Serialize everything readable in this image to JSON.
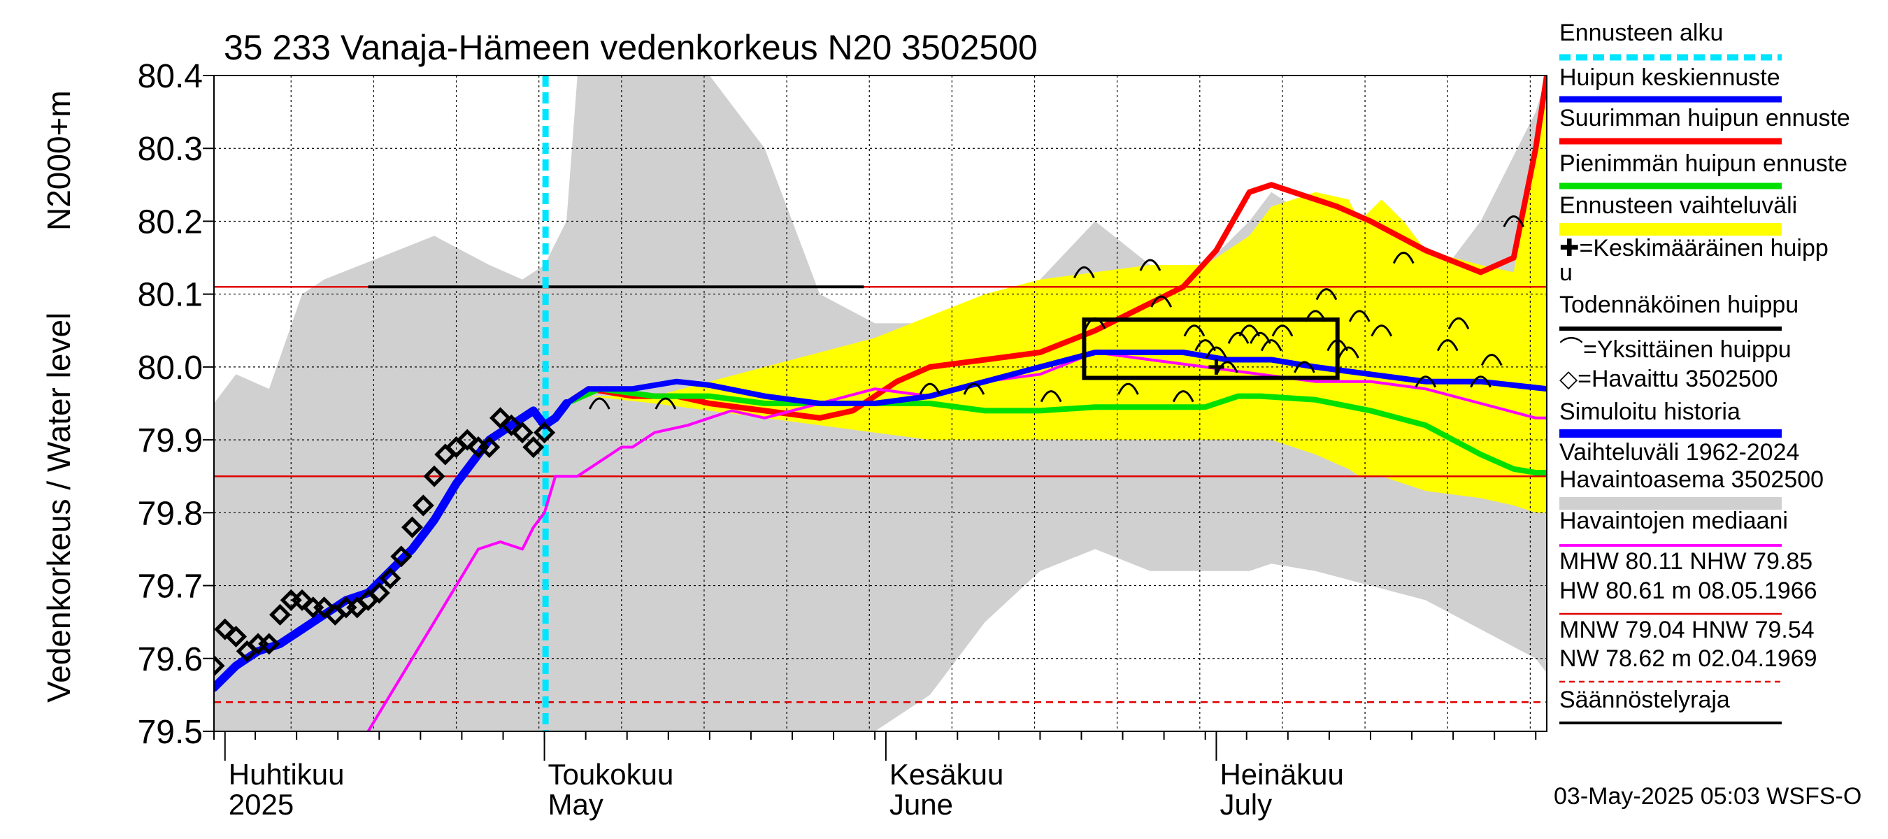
{
  "chart_data": {
    "type": "line",
    "title": "35 233 Vanaja-Hämeen vedenkorkeus N20 3502500",
    "ylabel": "Vedenkorkeus / Water level",
    "ylabel_unit": "N2000+m",
    "ylim": [
      79.5,
      80.4
    ],
    "y_ticks": [
      "80.4",
      "80.3",
      "80.2",
      "80.1",
      "80.0",
      "79.9",
      "79.8",
      "79.7",
      "79.6",
      "79.5"
    ],
    "x_range_days": [
      0,
      121
    ],
    "x_month_labels": [
      {
        "day": 1,
        "fi": "Huhtikuu",
        "en": "2025"
      },
      {
        "day": 30,
        "fi": "Toukokuu",
        "en": "May"
      },
      {
        "day": 61,
        "fi": "Kesäkuu",
        "en": "June"
      },
      {
        "day": 91,
        "fi": "Heinäkuu",
        "en": "July"
      }
    ],
    "forecast_start_day": 30.1,
    "reference_lines": [
      {
        "name": "MHW",
        "value": 80.11
      },
      {
        "name": "NHW",
        "value": 79.85
      },
      {
        "name": "Säännöstelyraja",
        "value": 79.54
      }
    ],
    "historical_range": {
      "x": [
        0,
        2,
        5,
        8,
        10,
        15,
        20,
        25,
        28,
        30,
        32,
        33,
        35,
        40,
        45,
        50,
        55,
        60,
        65,
        70,
        75,
        80,
        85,
        90,
        94,
        96,
        100,
        105,
        110,
        115,
        120,
        121
      ],
      "upper": [
        79.95,
        79.99,
        79.97,
        80.1,
        80.12,
        80.15,
        80.18,
        80.14,
        80.12,
        80.14,
        80.2,
        80.4,
        80.4,
        80.4,
        80.4,
        80.3,
        80.1,
        80.06,
        80.06,
        80.08,
        80.12,
        80.2,
        80.14,
        80.14,
        80.2,
        80.24,
        80.2,
        80.12,
        80.1,
        80.2,
        80.35,
        80.4
      ],
      "lower": [
        79.5,
        79.5,
        79.5,
        79.5,
        79.5,
        79.5,
        79.5,
        79.5,
        79.5,
        79.5,
        79.5,
        79.5,
        79.5,
        79.5,
        79.5,
        79.5,
        79.5,
        79.5,
        79.55,
        79.65,
        79.72,
        79.75,
        79.72,
        79.72,
        79.72,
        79.73,
        79.72,
        79.7,
        79.68,
        79.64,
        79.6,
        79.58
      ]
    },
    "forecast_band": {
      "x": [
        34,
        40,
        45,
        50,
        55,
        60,
        65,
        70,
        75,
        80,
        85,
        90,
        94,
        96,
        100,
        103,
        104,
        106,
        108,
        110,
        115,
        118,
        120,
        121
      ],
      "upper": [
        79.96,
        79.96,
        79.98,
        80.0,
        80.02,
        80.04,
        80.07,
        80.1,
        80.12,
        80.13,
        80.14,
        80.14,
        80.18,
        80.22,
        80.24,
        80.23,
        80.2,
        80.23,
        80.2,
        80.16,
        80.14,
        80.13,
        80.3,
        80.4
      ],
      "lower": [
        79.96,
        79.95,
        79.94,
        79.93,
        79.92,
        79.91,
        79.9,
        79.9,
        79.9,
        79.9,
        79.9,
        79.9,
        79.9,
        79.9,
        79.88,
        79.86,
        79.85,
        79.85,
        79.84,
        79.83,
        79.82,
        79.81,
        79.8,
        79.8
      ]
    },
    "series": [
      {
        "name": "Suurimman huipun ennuste",
        "color": "#ff0000",
        "x": [
          32,
          34,
          38,
          42,
          45,
          50,
          55,
          58,
          62,
          65,
          70,
          75,
          80,
          84,
          88,
          91,
          94,
          96,
          98,
          100,
          102,
          105,
          110,
          115,
          118,
          120,
          121
        ],
        "y": [
          79.95,
          79.97,
          79.96,
          79.96,
          79.95,
          79.94,
          79.93,
          79.94,
          79.98,
          80.0,
          80.01,
          80.02,
          80.05,
          80.08,
          80.11,
          80.16,
          80.24,
          80.25,
          80.24,
          80.23,
          80.22,
          80.2,
          80.16,
          80.13,
          80.15,
          80.3,
          80.4
        ]
      },
      {
        "name": "Pienimmän huipun ennuste",
        "color": "#00e000",
        "x": [
          32,
          35,
          40,
          45,
          50,
          55,
          60,
          65,
          70,
          75,
          80,
          85,
          90,
          93,
          95,
          100,
          105,
          110,
          115,
          118,
          120,
          121
        ],
        "y": [
          79.95,
          79.97,
          79.96,
          79.96,
          79.95,
          79.95,
          79.95,
          79.95,
          79.94,
          79.94,
          79.945,
          79.945,
          79.945,
          79.96,
          79.96,
          79.955,
          79.94,
          79.92,
          79.88,
          79.86,
          79.855,
          79.855
        ]
      },
      {
        "name": "Havaintojen mediaani",
        "color": "#ff00ff",
        "x": [
          14,
          16,
          18,
          20,
          22,
          24,
          26,
          28,
          29,
          30,
          31,
          32,
          33,
          34,
          35,
          36,
          37,
          38,
          40,
          43,
          45,
          47,
          50,
          55,
          60,
          65,
          70,
          75,
          80,
          85,
          90,
          95,
          100,
          105,
          110,
          115,
          120,
          121
        ],
        "y": [
          79.5,
          79.55,
          79.6,
          79.65,
          79.7,
          79.75,
          79.76,
          79.75,
          79.78,
          79.8,
          79.85,
          79.85,
          79.85,
          79.86,
          79.87,
          79.88,
          79.89,
          79.89,
          79.91,
          79.92,
          79.93,
          79.94,
          79.93,
          79.95,
          79.97,
          79.96,
          79.98,
          79.99,
          80.02,
          80.01,
          80.0,
          79.99,
          79.98,
          79.98,
          79.97,
          79.95,
          79.93,
          79.93
        ]
      },
      {
        "name": "Huipun keskiennuste",
        "color": "#0000ff",
        "x": [
          32,
          34,
          38,
          42,
          45,
          50,
          55,
          60,
          65,
          70,
          75,
          80,
          85,
          88,
          92,
          96,
          100,
          105,
          110,
          115,
          121
        ],
        "y": [
          79.95,
          79.97,
          79.97,
          79.98,
          79.975,
          79.96,
          79.95,
          79.95,
          79.96,
          79.98,
          80.0,
          80.02,
          80.02,
          80.02,
          80.01,
          80.01,
          80.0,
          79.99,
          79.98,
          79.98,
          79.97
        ]
      },
      {
        "name": "Simuloitu historia",
        "color": "#0000ff",
        "x": [
          0,
          2,
          4,
          6,
          8,
          10,
          12,
          14,
          16,
          18,
          20,
          22,
          24,
          25,
          26,
          27,
          28,
          29,
          30,
          31,
          32
        ],
        "y": [
          79.56,
          79.59,
          79.61,
          79.62,
          79.64,
          79.66,
          79.68,
          79.69,
          79.72,
          79.75,
          79.79,
          79.84,
          79.88,
          79.9,
          79.91,
          79.92,
          79.93,
          79.94,
          79.92,
          79.93,
          79.95
        ]
      }
    ],
    "observed": {
      "name": "Havaittu 3502500",
      "x": [
        0,
        1,
        2,
        3,
        4,
        5,
        6,
        7,
        8,
        9,
        10,
        11,
        12,
        13,
        14,
        15,
        16,
        17,
        18,
        19,
        20,
        21,
        22,
        23,
        24,
        25,
        26,
        27,
        28,
        29,
        30
      ],
      "y": [
        79.59,
        79.64,
        79.63,
        79.61,
        79.62,
        79.62,
        79.66,
        79.68,
        79.68,
        79.67,
        79.67,
        79.66,
        79.67,
        79.67,
        79.68,
        79.69,
        79.71,
        79.74,
        79.78,
        79.81,
        79.85,
        79.88,
        79.89,
        79.9,
        79.89,
        79.89,
        79.93,
        79.92,
        79.91,
        79.89,
        79.91
      ]
    },
    "single_peaks": {
      "name": "Yksittäinen huippu",
      "x": [
        35,
        41,
        65,
        69,
        76,
        79,
        80,
        83,
        85,
        86,
        88,
        89,
        90,
        91,
        92,
        93,
        94,
        95,
        96,
        97,
        99,
        100,
        101,
        102,
        103,
        104,
        106,
        108,
        110,
        112,
        113,
        115,
        116,
        118
      ],
      "y": [
        79.95,
        79.95,
        79.97,
        79.97,
        79.96,
        80.13,
        80.06,
        79.97,
        80.14,
        80.09,
        79.96,
        80.05,
        80.03,
        80.02,
        80.0,
        80.04,
        80.05,
        80.04,
        80.03,
        80.05,
        80.0,
        80.07,
        80.1,
        80.03,
        80.02,
        80.07,
        80.05,
        80.15,
        79.98,
        80.03,
        80.06,
        79.98,
        80.01,
        80.2
      ]
    },
    "mean_peak": {
      "name": "Keskimääräinen huippu",
      "x": 91,
      "y": 80.0
    },
    "probable_peak_box": {
      "name": "Todennäköinen huippu",
      "x0": 79,
      "x1": 102,
      "y0": 79.985,
      "y1": 80.065
    },
    "historical_max_line": {
      "x0": 14,
      "x1": 59,
      "y": 80.11
    },
    "legend": [
      "Ennusteen alku",
      "Huipun keskiennuste",
      "Suurimman huipun ennuste",
      "Pienimmän huipun ennuste",
      "Ennusteen vaihteluväli",
      "✚=Keskimääräinen huipp",
      "u",
      "Todennäköinen huippu",
      "⌒=Yksittäinen huippu",
      "◇=Havaittu 3502500",
      "Simuloitu historia",
      "Vaihteluväli 1962-2024",
      " Havaintoasema 3502500",
      "Havaintojen mediaani",
      "MHW  80.11 NHW  79.85",
      "HW  80.61 m 08.05.1966",
      "MNW  79.04 HNW  79.54",
      "NW  78.62 m 02.04.1969",
      "Säännöstelyraja"
    ],
    "footer": "03-May-2025 05:03 WSFS-O",
    "colors": {
      "range": "#d0d0d0",
      "band": "#ffff00",
      "forecast_start": "#00e5ff",
      "mean": "#0000ff",
      "max": "#ff0000",
      "min": "#00e000",
      "median": "#ff00ff",
      "ref": "#e00000"
    }
  }
}
